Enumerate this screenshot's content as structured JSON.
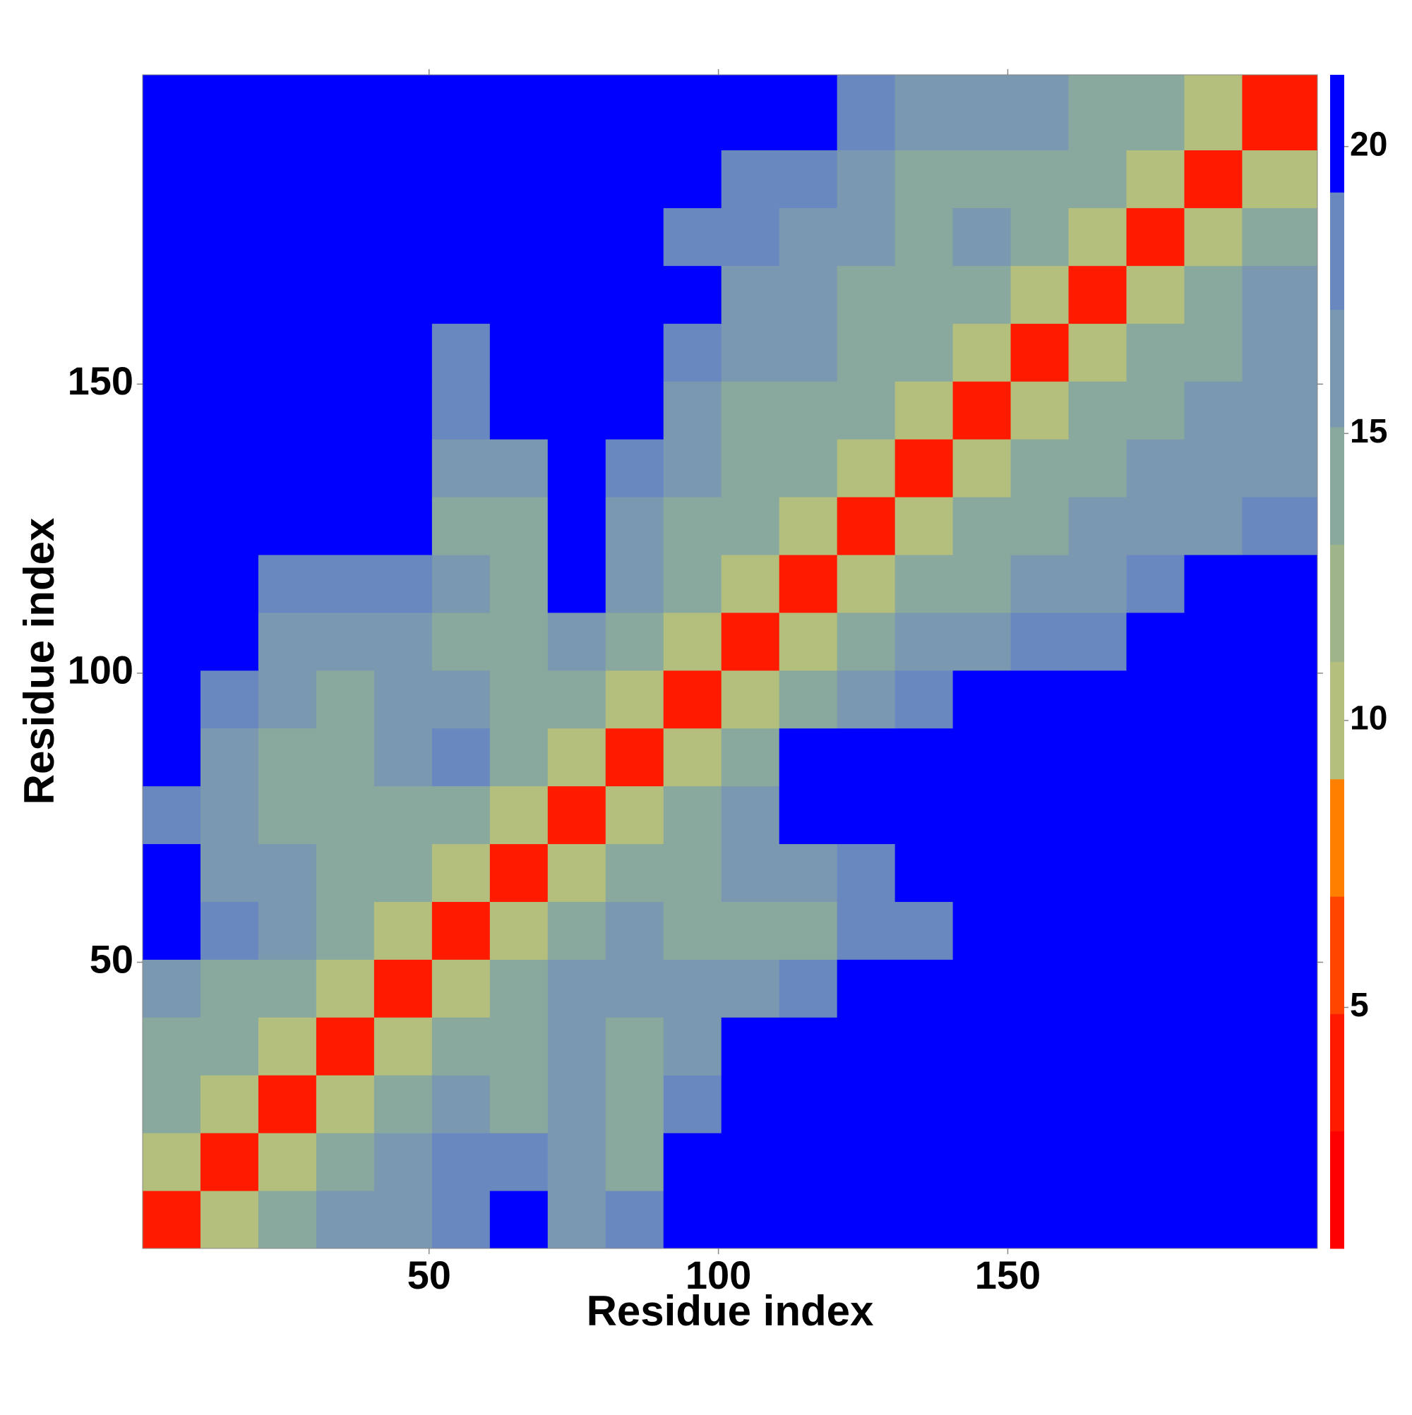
{
  "chart_data": {
    "type": "heatmap",
    "xlabel": "Residue index",
    "ylabel": "Residue index",
    "xlim": [
      0.5,
      203.5
    ],
    "ylim": [
      0.5,
      203.5
    ],
    "xticks": [
      50,
      100,
      150
    ],
    "yticks": [
      50,
      100,
      150
    ],
    "xbins": [
      0.5,
      10.5,
      20.5,
      30.5,
      40.5,
      50.5,
      60.5,
      70.5,
      80.5,
      90.5,
      100.5,
      110.5,
      120.5,
      130.5,
      140.5,
      150.5,
      160.5,
      170.5,
      180.5,
      190.5,
      203.5
    ],
    "ybins": [
      0.5,
      10.5,
      20.5,
      30.5,
      40.5,
      50.5,
      60.5,
      70.5,
      80.5,
      90.5,
      100.5,
      110.5,
      120.5,
      130.5,
      140.5,
      150.5,
      160.5,
      170.5,
      180.5,
      190.5,
      203.5
    ],
    "z": [
      [
        4,
        10,
        15,
        16,
        17,
        19,
        20,
        17,
        18,
        21,
        21,
        21,
        21,
        21,
        21,
        21,
        21,
        21,
        21,
        21
      ],
      [
        10,
        4,
        10,
        15,
        16,
        18,
        18,
        16,
        15,
        20,
        21,
        21,
        21,
        21,
        21,
        21,
        21,
        21,
        21,
        21
      ],
      [
        14,
        10,
        4,
        10,
        15,
        16,
        15,
        16,
        15,
        18,
        21,
        21,
        21,
        21,
        21,
        21,
        21,
        21,
        21,
        21
      ],
      [
        15,
        14,
        10,
        4,
        10,
        15,
        15,
        17,
        15,
        17,
        21,
        21,
        21,
        21,
        21,
        21,
        21,
        21,
        21,
        21
      ],
      [
        16,
        15,
        14,
        10,
        4,
        10,
        15,
        16,
        17,
        17,
        17,
        19,
        20,
        21,
        21,
        21,
        21,
        21,
        21,
        21
      ],
      [
        21,
        18,
        16,
        15,
        10,
        4,
        10,
        15,
        16,
        15,
        15,
        15,
        18,
        19,
        21,
        21,
        21,
        21,
        21,
        21
      ],
      [
        21,
        17,
        16,
        14,
        15,
        10,
        4,
        10,
        15,
        15,
        16,
        16,
        19,
        21,
        21,
        21,
        21,
        21,
        21,
        21
      ],
      [
        19,
        16,
        15,
        14,
        15,
        15,
        10,
        4,
        10,
        15,
        17,
        21,
        21,
        21,
        21,
        21,
        21,
        21,
        21,
        21
      ],
      [
        21,
        17,
        15,
        15,
        16,
        18,
        15,
        10,
        4,
        10,
        15,
        21,
        21,
        21,
        21,
        21,
        21,
        21,
        21,
        21
      ],
      [
        21,
        19,
        16,
        15,
        16,
        16,
        15,
        15,
        10,
        4,
        10,
        15,
        17,
        19,
        21,
        21,
        21,
        21,
        21,
        21
      ],
      [
        21,
        20,
        17,
        16,
        17,
        15,
        15,
        16,
        15,
        10,
        4,
        10,
        15,
        16,
        17,
        19,
        19,
        20,
        21,
        21
      ],
      [
        21,
        21,
        19,
        18,
        19,
        16,
        15,
        21,
        16,
        15,
        10,
        4,
        10,
        14,
        15,
        16,
        17,
        19,
        20,
        21
      ],
      [
        21,
        21,
        21,
        20,
        21,
        15,
        15,
        21,
        17,
        15,
        14,
        10,
        4,
        10,
        14,
        15,
        16,
        16,
        17,
        18
      ],
      [
        21,
        21,
        21,
        21,
        21,
        16,
        16,
        21,
        19,
        16,
        15,
        14,
        10,
        4,
        10,
        14,
        15,
        16,
        16,
        17
      ],
      [
        21,
        21,
        21,
        21,
        21,
        19,
        20,
        21,
        21,
        17,
        15,
        15,
        14,
        10,
        4,
        10,
        14,
        15,
        16,
        16
      ],
      [
        21,
        21,
        21,
        21,
        21,
        19,
        21,
        21,
        21,
        19,
        16,
        16,
        15,
        14,
        10,
        4,
        10,
        14,
        15,
        16
      ],
      [
        21,
        21,
        21,
        21,
        21,
        21,
        21,
        21,
        21,
        20,
        17,
        16,
        15,
        15,
        14,
        10,
        4,
        10,
        14,
        16
      ],
      [
        21,
        21,
        21,
        21,
        21,
        21,
        21,
        21,
        21,
        19,
        18,
        17,
        16,
        15,
        16,
        14,
        10,
        4,
        10,
        14
      ],
      [
        21,
        21,
        21,
        21,
        21,
        21,
        21,
        21,
        21,
        21,
        19,
        18,
        16,
        15,
        15,
        15,
        14,
        10,
        4,
        10
      ],
      [
        21,
        21,
        21,
        21,
        21,
        21,
        21,
        21,
        21,
        21,
        21,
        20,
        18,
        17,
        16,
        16,
        15,
        14,
        10,
        4
      ]
    ],
    "zlim": [
      0.8,
      21.25
    ],
    "zticks": [
      5,
      10,
      15,
      20
    ],
    "colorscale": [
      "#ff0000",
      "#ff1a00",
      "#ff4500",
      "#ff8000",
      "#b4bf7d",
      "#a0b48a",
      "#8aa99e",
      "#7a99b0",
      "#6a88c0",
      "#0000ff"
    ]
  }
}
